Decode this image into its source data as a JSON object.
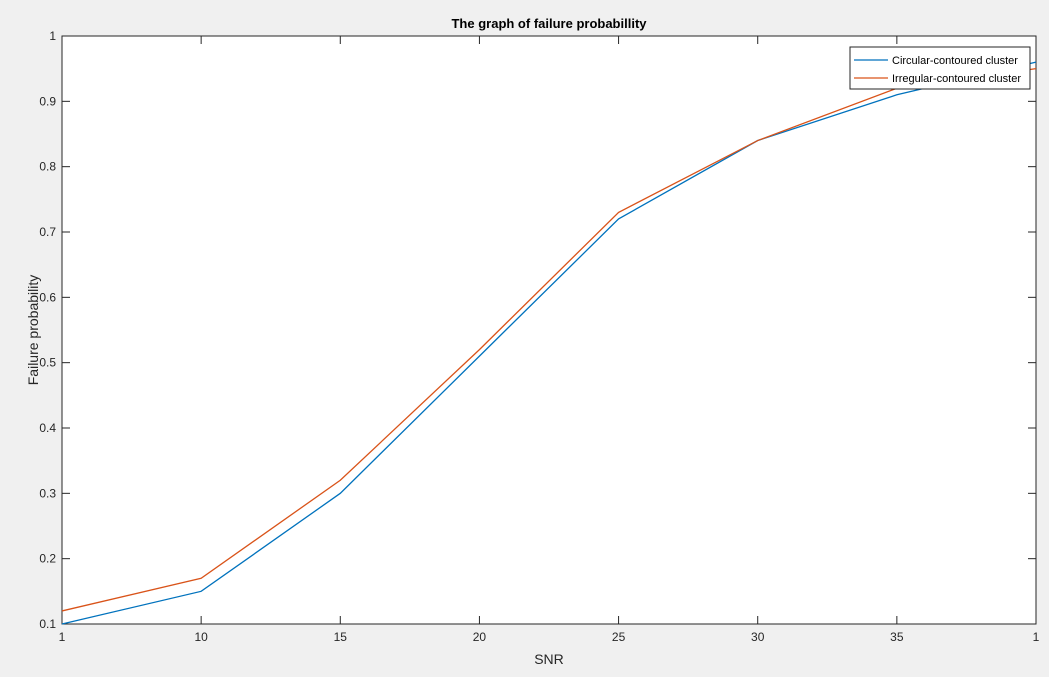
{
  "chart_data": {
    "type": "line",
    "title": "The graph of failure probabillity",
    "xlabel": "SNR",
    "ylabel": "Failure probability",
    "x_tick_labels": [
      "1",
      "10",
      "15",
      "20",
      "25",
      "30",
      "35",
      "1"
    ],
    "y_tick_labels": [
      "0.1",
      "0.2",
      "0.3",
      "0.4",
      "0.5",
      "0.6",
      "0.7",
      "0.8",
      "0.9",
      "1"
    ],
    "ylim": [
      0.1,
      1
    ],
    "grid": false,
    "legend_position": "top-right",
    "series": [
      {
        "name": "Circular-contoured cluster",
        "color": "#0072BD",
        "values": [
          0.1,
          0.15,
          0.3,
          0.51,
          0.72,
          0.84,
          0.91,
          0.96
        ]
      },
      {
        "name": "Irregular-contoured cluster",
        "color": "#D95319",
        "values": [
          0.12,
          0.17,
          0.32,
          0.52,
          0.73,
          0.84,
          0.92,
          0.95
        ]
      }
    ]
  }
}
